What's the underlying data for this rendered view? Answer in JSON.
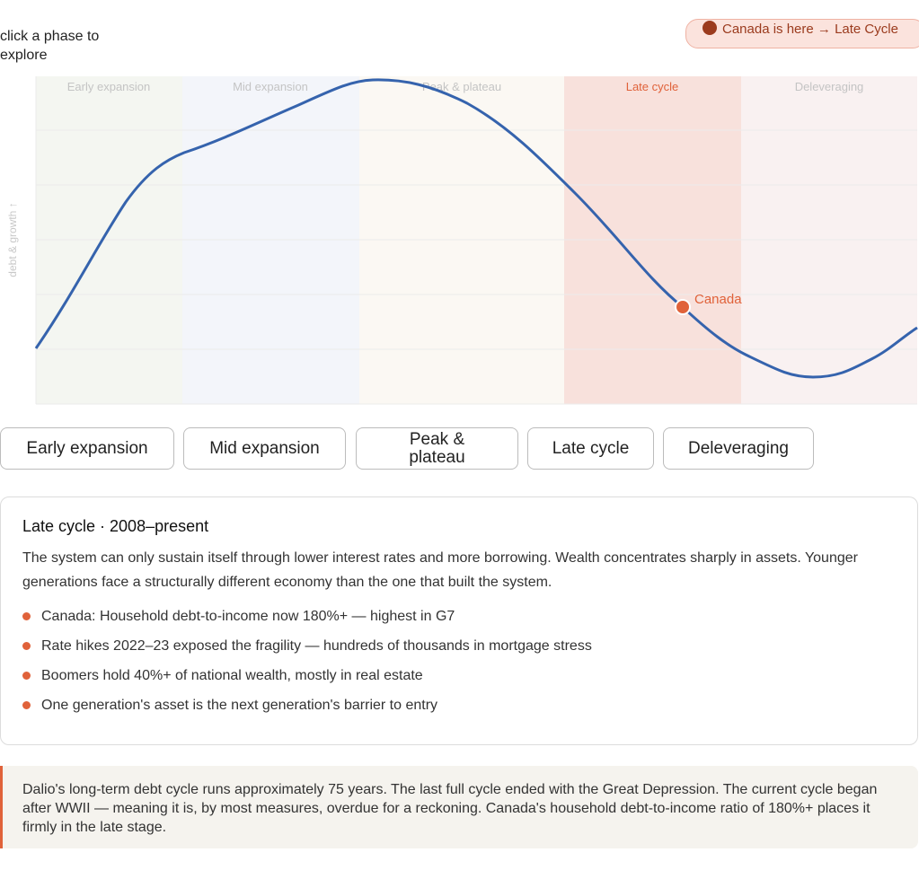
{
  "header": {
    "hint": "click a phase to explore",
    "badge": "Canada is here → Late Cycle"
  },
  "diagram": {
    "y_label": "debt & growth ↑",
    "phases": [
      "Early expansion",
      "Mid expansion",
      "Peak & plateau",
      "Late cycle",
      "Deleveraging"
    ],
    "marker_label": "Canada"
  },
  "buttons": [
    "Early expansion",
    "Mid expansion",
    "Peak & plateau",
    "Late cycle",
    "Deleveraging"
  ],
  "detail": {
    "title": "Late cycle · 2008–present",
    "body": "The system can only sustain itself through lower interest rates and more borrowing. Wealth concentrates sharply in assets. Younger generations face a structurally different economy than the one that built the system.",
    "bullets": [
      "Canada: Household debt-to-income now 180%+ — highest in G7",
      "Rate hikes 2022–23 exposed the fragility — hundreds of thousands in mortgage stress",
      "Boomers hold 40%+ of national wealth, mostly in real estate",
      "One generation's asset is the next generation's barrier to entry"
    ]
  },
  "note": "Dalio's long-term debt cycle runs approximately 75 years. The last full cycle ended with the Great Depression. The current cycle began after WWII — meaning it is, by most measures, overdue for a reckoning. Canada's household debt-to-income ratio of 180%+ places it firmly in the late stage."
}
